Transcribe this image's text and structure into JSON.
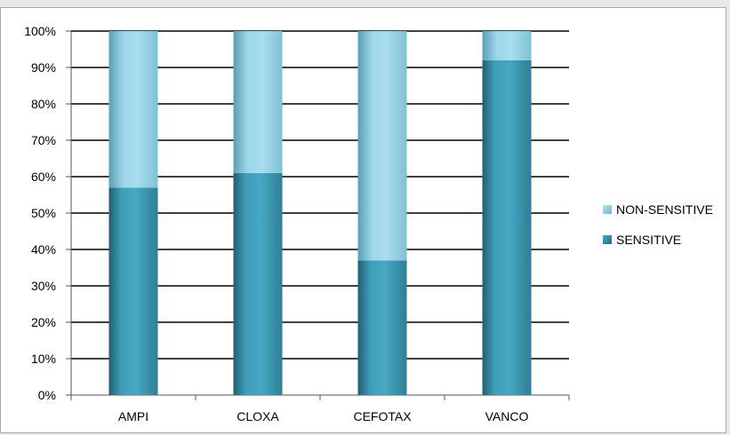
{
  "chart_data": {
    "type": "bar",
    "stacked": true,
    "percent": true,
    "categories": [
      "AMPI",
      "CLOXA",
      "CEFOTAX",
      "VANCO"
    ],
    "series": [
      {
        "name": "SENSITIVE",
        "values": [
          57,
          61,
          37,
          92
        ],
        "color": "#3a93ad"
      },
      {
        "name": "NON-SENSITIVE",
        "values": [
          43,
          39,
          63,
          8
        ],
        "color": "#93cde4"
      }
    ],
    "ylim": [
      0,
      100
    ],
    "yticks": [
      "0%",
      "10%",
      "20%",
      "30%",
      "40%",
      "50%",
      "60%",
      "70%",
      "80%",
      "90%",
      "100%"
    ],
    "grid": true,
    "legend_position": "right",
    "legend": [
      "NON-SENSITIVE",
      "SENSITIVE"
    ]
  }
}
